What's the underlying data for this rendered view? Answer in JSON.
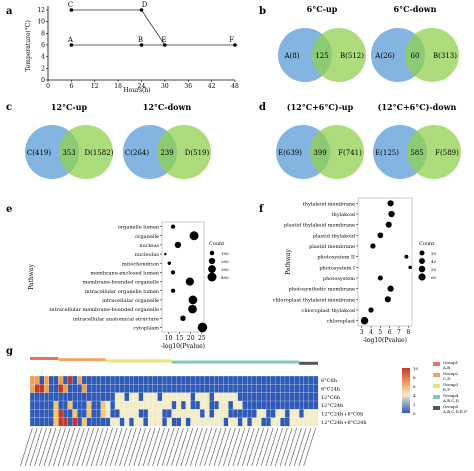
{
  "chart_data": [
    {
      "panel": "a",
      "type": "line",
      "xlabel": "Hours(h)",
      "ylabel": "Temperature(°C)",
      "xticks": [
        0,
        6,
        12,
        18,
        24,
        30,
        36,
        42,
        48
      ],
      "yticks": [
        0,
        2,
        4,
        6,
        8,
        10,
        12
      ],
      "xlim": [
        0,
        48
      ],
      "ylim": [
        0,
        12
      ],
      "series": [
        {
          "values": [
            [
              6,
              12
            ],
            [
              24,
              12
            ],
            [
              30,
              6
            ]
          ]
        },
        {
          "values": [
            [
              6,
              6
            ],
            [
              24,
              6
            ],
            [
              30,
              6
            ],
            [
              48,
              6
            ]
          ]
        }
      ],
      "points": [
        {
          "label": "C",
          "x": 6,
          "y": 12
        },
        {
          "label": "D",
          "x": 24,
          "y": 12
        },
        {
          "label": "A",
          "x": 6,
          "y": 6
        },
        {
          "label": "B",
          "x": 24,
          "y": 6
        },
        {
          "label": "E",
          "x": 30,
          "y": 6
        },
        {
          "label": "F",
          "x": 48,
          "y": 6
        }
      ]
    },
    {
      "panel": "b",
      "type": "venn",
      "diagrams": [
        {
          "title": "6°C-up",
          "left": "A(8)",
          "overlap": "125",
          "right": "B(512)"
        },
        {
          "title": "6°C-down",
          "left": "A(26)",
          "overlap": "60",
          "right": "B(313)"
        }
      ]
    },
    {
      "panel": "c",
      "type": "venn",
      "diagrams": [
        {
          "title": "12°C-up",
          "left": "C(419)",
          "overlap": "353",
          "right": "D(1582)"
        },
        {
          "title": "12°C-down",
          "left": "C(264)",
          "overlap": "239",
          "right": "D(519)"
        }
      ]
    },
    {
      "panel": "d",
      "type": "venn",
      "diagrams": [
        {
          "title": "(12°C+6°C)-up",
          "left": "E(639)",
          "overlap": "399",
          "right": "F(741)"
        },
        {
          "title": "(12°C+6°C)-down",
          "left": "E(125)",
          "overlap": "585",
          "right": "F(589)"
        }
      ]
    },
    {
      "panel": "e",
      "type": "scatter",
      "ylabel": "Pathway",
      "xlabel": "-log10(Pvalue)",
      "xlim": [
        7,
        26
      ],
      "xticks": [
        10,
        15,
        20,
        25
      ],
      "legend_title": "Count",
      "legend_values": [
        100,
        200,
        300,
        400
      ],
      "categories": [
        "organelle lumen",
        "organelle",
        "nucleus",
        "nucleolus",
        "mitochondrion",
        "membrane-enclosed lumen",
        "membrane-bounded organelle",
        "intracellular organelle lumen",
        "intracellular organelle",
        "intracellular membrane-bounded organelle",
        "intracellular anatomical structure",
        "cytoplasm"
      ],
      "values": [
        12.0,
        21.5,
        14.2,
        8.5,
        10.3,
        12.0,
        19.6,
        12.0,
        21.0,
        20.8,
        16.5,
        25.3
      ],
      "counts": [
        90,
        400,
        200,
        30,
        60,
        90,
        330,
        90,
        380,
        370,
        150,
        450
      ]
    },
    {
      "panel": "f",
      "type": "scatter",
      "ylabel": "Pathway",
      "xlabel": "-log10(Pvalue)",
      "xlim": [
        2.6,
        8.4
      ],
      "xticks": [
        3,
        4,
        5,
        6,
        7,
        8
      ],
      "legend_title": "Count",
      "legend_values": [
        30,
        40,
        50,
        60
      ],
      "categories": [
        "thylakoid membrane",
        "thylakoid",
        "plastid thylakoid membrane",
        "plastid thylakoid",
        "plastid membrane",
        "photosystem II",
        "photosystem I",
        "photosystem",
        "photosynthetic membrane",
        "chloroplast thylakoid membrane",
        "chloroplast thylakoid",
        "chloroplast"
      ],
      "values": [
        6.1,
        6.2,
        5.9,
        5.0,
        4.2,
        7.8,
        8.2,
        5.0,
        6.1,
        5.8,
        4.0,
        3.3
      ],
      "counts": [
        45,
        47,
        43,
        38,
        33,
        18,
        14,
        30,
        45,
        43,
        32,
        65
      ]
    },
    {
      "panel": "g",
      "type": "heatmap",
      "rows": [
        "6°C6h",
        "6°C24h",
        "12°C6h",
        "12°C24h",
        "12°C24h+6°C6h",
        "12°C24h+6°C24h"
      ],
      "colorbar_ticks": [
        10,
        8,
        6,
        4,
        2,
        0
      ],
      "legend": [
        {
          "label": "Group1",
          "sub": "A,B",
          "color": "#e8725a"
        },
        {
          "label": "Group2",
          "sub": "C,D",
          "color": "#f4a460"
        },
        {
          "label": "Group3",
          "sub": "E,F",
          "color": "#e6e67a"
        },
        {
          "label": "Group4",
          "sub": "A,B,C,D",
          "color": "#7ec8b8"
        },
        {
          "label": "Group5",
          "sub": "A,B,C,D,E,F",
          "color": "#555555"
        }
      ]
    }
  ],
  "panel_labels": [
    "a",
    "b",
    "c",
    "d",
    "e",
    "f",
    "g"
  ],
  "colors": {
    "venn_left": "#5b9bd5",
    "venn_right": "#92d050",
    "heat_low": "#2f5bb7",
    "heat_mid": "#f2ecc8",
    "heat_high": "#c0392b"
  }
}
